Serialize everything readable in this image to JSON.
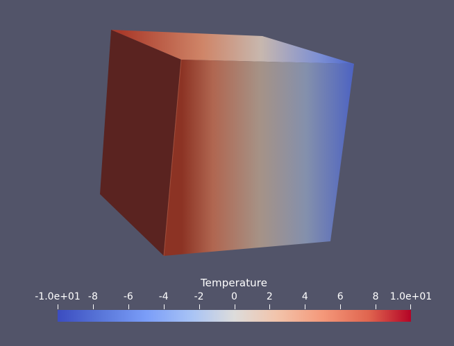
{
  "colorbar": {
    "title": "Temperature",
    "range": [
      -10,
      10
    ],
    "tick_labels": [
      "-1.0e+01",
      "-8",
      "-6",
      "-4",
      "-2",
      "0",
      "2",
      "4",
      "6",
      "8",
      "1.0e+01"
    ],
    "tick_values": [
      -10,
      -8,
      -6,
      -4,
      -2,
      0,
      2,
      4,
      6,
      8,
      10
    ],
    "colormap": "cool-to-warm",
    "colors": {
      "min": "#3b4cc0",
      "mid": "#dddcdb",
      "max": "#b40426"
    }
  },
  "colors": {
    "background": "#525469",
    "left_face": "#5a2320"
  }
}
